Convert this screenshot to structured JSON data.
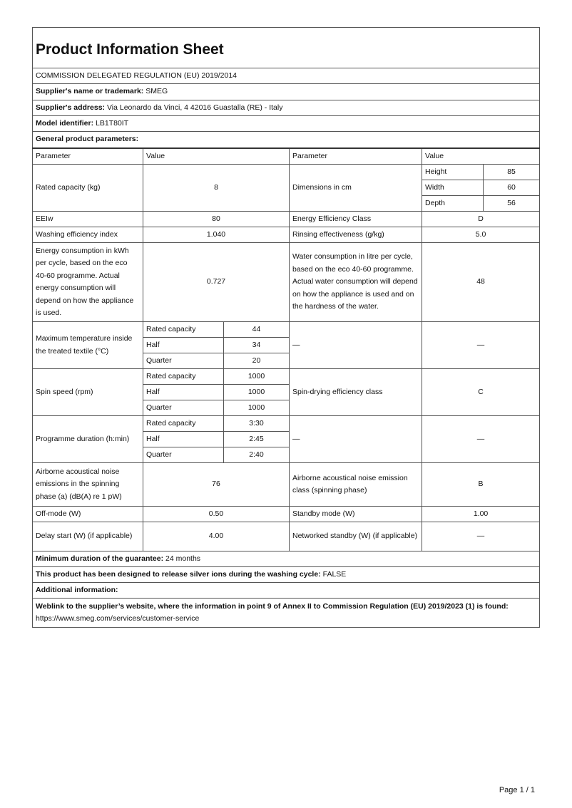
{
  "title": "Product Information Sheet",
  "regulation": "COMMISSION DELEGATED REGULATION (EU) 2019/2014",
  "supplier_name": {
    "label": "Supplier's name or trademark:",
    "value": "SMEG"
  },
  "supplier_address": {
    "label": "Supplier's address:",
    "value": "Via Leonardo da Vinci, 4 42016 Guastalla (RE) - Italy"
  },
  "model": {
    "label": "Model identifier:",
    "value": "LB1T80IT"
  },
  "general_heading": "General product parameters:",
  "headers": {
    "param1": "Parameter",
    "value1": "Value",
    "param2": "Parameter",
    "value2": "Value"
  },
  "rated_capacity": {
    "label": "Rated capacity (kg)",
    "value": "8"
  },
  "dimensions": {
    "label": "Dimensions in cm",
    "height_label": "Height",
    "height": "85",
    "width_label": "Width",
    "width": "60",
    "depth_label": "Depth",
    "depth": "56"
  },
  "eeiw": {
    "label": "EEIw",
    "value": "80"
  },
  "energy_class": {
    "label": "Energy Efficiency Class",
    "value": "D"
  },
  "washing_index": {
    "label": "Washing efficiency index",
    "value": "1.040"
  },
  "rinsing": {
    "label": "Rinsing effectiveness (g/kg)",
    "value": "5.0"
  },
  "energy_consumption": {
    "label": "Energy consumption in kWh per cycle, based on the eco 40-60 programme. Actual energy consumption will depend on how the appliance is used.",
    "value": "0.727"
  },
  "water_consumption": {
    "label": "Water consumption in litre per cycle, based on the eco 40-60 programme. Actual water consumption will depend on how the appliance is used and on the hardness of the water.",
    "value": "48"
  },
  "max_temp": {
    "label": "Maximum temperature inside the treated textile (°C)",
    "rated_label": "Rated capacity",
    "rated": "44",
    "half_label": "Half",
    "half": "34",
    "quarter_label": "Quarter",
    "quarter": "20",
    "extra_param": "—",
    "extra_value": "—"
  },
  "spin_speed": {
    "label": "Spin speed (rpm)",
    "rated_label": "Rated capacity",
    "rated": "1000",
    "half_label": "Half",
    "half": "1000",
    "quarter_label": "Quarter",
    "quarter": "1000"
  },
  "spin_class": {
    "label": "Spin-drying efficiency class",
    "value": "C"
  },
  "duration": {
    "label": "Programme duration (h:min)",
    "rated_label": "Rated capacity",
    "rated": "3:30",
    "half_label": "Half",
    "half": "2:45",
    "quarter_label": "Quarter",
    "quarter": "2:40",
    "extra_param": "—",
    "extra_value": "—"
  },
  "noise": {
    "label": "Airborne acoustical noise emissions in the spinning phase (a) (dB(A) re 1 pW)",
    "value": "76"
  },
  "noise_class": {
    "label": "Airborne acoustical noise emission class (spinning phase)",
    "value": "B"
  },
  "off_mode": {
    "label": "Off-mode (W)",
    "value": "0.50"
  },
  "standby": {
    "label": "Standby mode (W)",
    "value": "1.00"
  },
  "delay_start": {
    "label": "Delay start (W) (if applicable)",
    "value": "4.00"
  },
  "networked_standby": {
    "label": "Networked standby (W) (if applicable)",
    "value": "—"
  },
  "guarantee": {
    "label": "Minimum duration of the guarantee:",
    "value": "24 months"
  },
  "silver_ions": {
    "label": "This product has been designed to release silver ions during the washing cycle:",
    "value": "FALSE"
  },
  "additional_info": "Additional information:",
  "weblink": {
    "label": "Weblink to the supplier’s website, where the information in point 9 of Annex II to Commission Regulation (EU) 2019/2023 (1) is found:",
    "value": "https://www.smeg.com/services/customer-service"
  },
  "page_number": "Page 1 / 1"
}
